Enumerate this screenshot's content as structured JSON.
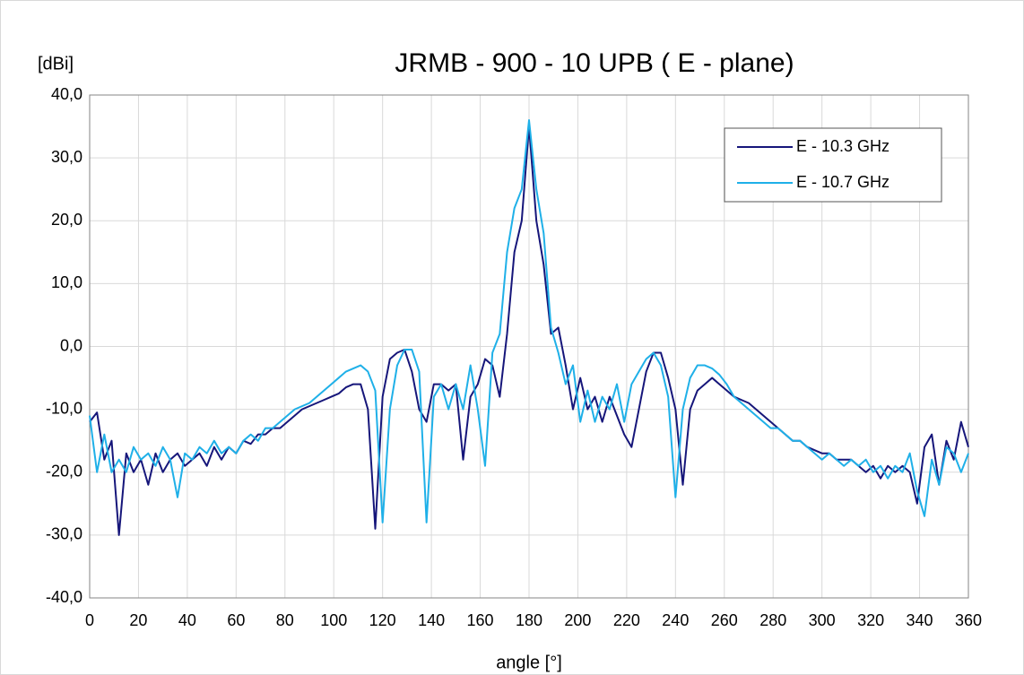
{
  "chart_data": {
    "type": "line",
    "title": "JRMB - 900 - 10 UPB ( E - plane)",
    "y_label": "[dBi]",
    "x_label": "angle [°]",
    "x": [
      0,
      3,
      6,
      9,
      12,
      15,
      18,
      21,
      24,
      27,
      30,
      33,
      36,
      39,
      42,
      45,
      48,
      51,
      54,
      57,
      60,
      63,
      66,
      69,
      72,
      75,
      78,
      81,
      84,
      87,
      90,
      93,
      96,
      99,
      102,
      105,
      108,
      111,
      114,
      117,
      120,
      123,
      126,
      129,
      132,
      135,
      138,
      141,
      144,
      147,
      150,
      153,
      156,
      159,
      162,
      165,
      168,
      171,
      174,
      177,
      180,
      183,
      186,
      189,
      192,
      195,
      198,
      201,
      204,
      207,
      210,
      213,
      216,
      219,
      222,
      225,
      228,
      231,
      234,
      237,
      240,
      243,
      246,
      249,
      252,
      255,
      258,
      261,
      264,
      267,
      270,
      273,
      276,
      279,
      282,
      285,
      288,
      291,
      294,
      297,
      300,
      303,
      306,
      309,
      312,
      315,
      318,
      321,
      324,
      327,
      330,
      333,
      336,
      339,
      342,
      345,
      348,
      351,
      354,
      357,
      360
    ],
    "series": [
      {
        "name": "E - 10.3 GHz",
        "color": "#16167a",
        "values": [
          -12,
          -10.5,
          -18,
          -15,
          -30,
          -17,
          -20,
          -18,
          -22,
          -17,
          -20,
          -18,
          -17,
          -19,
          -18,
          -17,
          -19,
          -16,
          -18,
          -16,
          -17,
          -15,
          -15.5,
          -14,
          -14,
          -13,
          -13,
          -12,
          -11,
          -10,
          -9.5,
          -9,
          -8.5,
          -8,
          -7.5,
          -6.5,
          -6,
          -6,
          -10,
          -29,
          -8,
          -2,
          -1,
          -0.5,
          -4,
          -10,
          -12,
          -6,
          -6,
          -7,
          -6,
          -18,
          -8,
          -6,
          -2,
          -3,
          -8,
          2,
          15,
          20,
          35,
          20,
          13,
          2,
          3,
          -3,
          -10,
          -5,
          -10,
          -8,
          -12,
          -8,
          -11,
          -14,
          -16,
          -10,
          -4,
          -1,
          -1,
          -5,
          -10,
          -22,
          -10,
          -7,
          -6,
          -5,
          -6,
          -7,
          -8,
          -8.5,
          -9,
          -10,
          -11,
          -12,
          -13,
          -14,
          -15,
          -15,
          -16,
          -16.5,
          -17,
          -17,
          -18,
          -18,
          -18,
          -19,
          -20,
          -19,
          -21,
          -19,
          -20,
          -19,
          -20,
          -25,
          -16,
          -14,
          -22,
          -15,
          -18,
          -12,
          -16
        ]
      },
      {
        "name": "E - 10.7 GHz",
        "color": "#1fb0e8",
        "values": [
          -11,
          -20,
          -14,
          -20,
          -18,
          -20,
          -16,
          -18,
          -17,
          -19,
          -16,
          -18,
          -24,
          -17,
          -18,
          -16,
          -17,
          -15,
          -17,
          -16,
          -17,
          -15,
          -14,
          -15,
          -13,
          -13,
          -12,
          -11,
          -10,
          -9.5,
          -9,
          -8,
          -7,
          -6,
          -5,
          -4,
          -3.5,
          -3,
          -4,
          -7,
          -28,
          -10,
          -3,
          -0.5,
          -0.5,
          -4,
          -28,
          -8,
          -6,
          -10,
          -6,
          -10,
          -3,
          -10,
          -19,
          -1,
          2,
          15,
          22,
          25,
          36,
          25,
          18,
          3,
          -1,
          -6,
          -3,
          -12,
          -7,
          -12,
          -8,
          -10,
          -6,
          -12,
          -6,
          -4,
          -2,
          -1,
          -3,
          -8,
          -24,
          -10,
          -5,
          -3,
          -3,
          -3.5,
          -4.5,
          -6,
          -8,
          -9,
          -10,
          -11,
          -12,
          -13,
          -13,
          -14,
          -15,
          -15,
          -16,
          -17,
          -18,
          -17,
          -18,
          -19,
          -18,
          -19,
          -18,
          -20,
          -19,
          -21,
          -19,
          -20,
          -17,
          -23,
          -27,
          -18,
          -22,
          -16,
          -17,
          -20,
          -17
        ]
      }
    ],
    "xlim": [
      0,
      360
    ],
    "xticks": [
      0,
      20,
      40,
      60,
      80,
      100,
      120,
      140,
      160,
      180,
      200,
      220,
      240,
      260,
      280,
      300,
      320,
      340,
      360
    ],
    "ylim": [
      -40,
      40
    ],
    "yticks": [
      {
        "value": -40,
        "label": "-40,0"
      },
      {
        "value": -30,
        "label": "-30,0"
      },
      {
        "value": -20,
        "label": "-20,0"
      },
      {
        "value": -10,
        "label": "-10,0"
      },
      {
        "value": 0,
        "label": "0,0"
      },
      {
        "value": 10,
        "label": "10,0"
      },
      {
        "value": 20,
        "label": "20,0"
      },
      {
        "value": 30,
        "label": "30,0"
      },
      {
        "value": 40,
        "label": "40,0"
      }
    ],
    "grid": true,
    "legend": "upper right"
  }
}
